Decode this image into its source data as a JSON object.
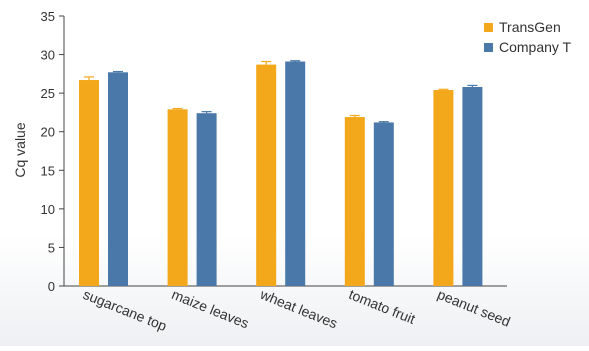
{
  "chart_data": {
    "type": "bar",
    "categories": [
      "sugarcane top",
      "maize leaves",
      "wheat leaves",
      "tomato fruit",
      "peanut seed"
    ],
    "series": [
      {
        "name": "TransGen",
        "color": "#f3a71a",
        "values": [
          26.7,
          22.9,
          28.7,
          21.9,
          25.4
        ],
        "errors": [
          0.4,
          0.1,
          0.4,
          0.2,
          0.1
        ]
      },
      {
        "name": "Company T",
        "color": "#4a78a8",
        "values": [
          27.7,
          22.4,
          29.1,
          21.2,
          25.8
        ],
        "errors": [
          0.1,
          0.2,
          0.1,
          0.1,
          0.2
        ]
      }
    ],
    "ylabel": "Cq value",
    "xlabel": "",
    "ylim": [
      0,
      35
    ],
    "yticks": [
      0,
      5,
      10,
      15,
      20,
      25,
      30,
      35
    ],
    "grid": false,
    "legend_position": "top-right"
  }
}
